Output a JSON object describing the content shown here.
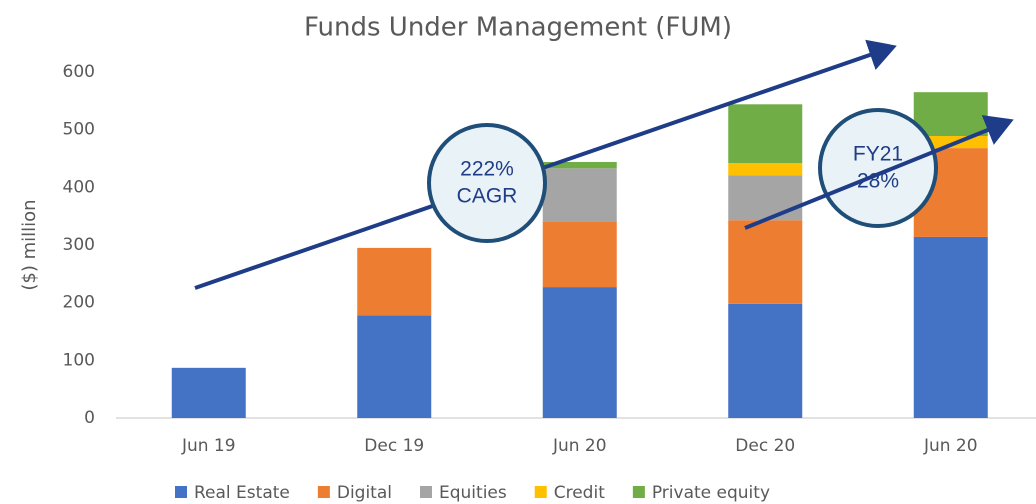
{
  "chart_data": {
    "type": "stacked_bar",
    "title": "Funds Under Management (FUM)",
    "y_label": "($) million",
    "categories": [
      "Jun 19",
      "Dec 19",
      "Jun 20",
      "Dec 20",
      "Jun 20"
    ],
    "series": [
      {
        "name": "Real Estate",
        "color": "#4472c4",
        "values": [
          87,
          178,
          227,
          198,
          314
        ]
      },
      {
        "name": "Digital",
        "color": "#ed7d31",
        "values": [
          0,
          117,
          114,
          145,
          154
        ]
      },
      {
        "name": "Equities",
        "color": "#a5a5a5",
        "values": [
          0,
          0,
          92,
          78,
          0
        ]
      },
      {
        "name": "Credit",
        "color": "#ffc000",
        "values": [
          0,
          0,
          0,
          21,
          21
        ]
      },
      {
        "name": "Private equity",
        "color": "#70ad47",
        "values": [
          0,
          0,
          11,
          102,
          76
        ]
      }
    ],
    "ylim": [
      0,
      600
    ],
    "yticks": [
      0,
      100,
      200,
      300,
      400,
      500,
      600
    ],
    "legend": "bottom",
    "annotations": [
      {
        "lines": [
          "222%",
          "CAGR"
        ]
      },
      {
        "lines": [
          "FY21",
          "28%"
        ]
      }
    ]
  }
}
